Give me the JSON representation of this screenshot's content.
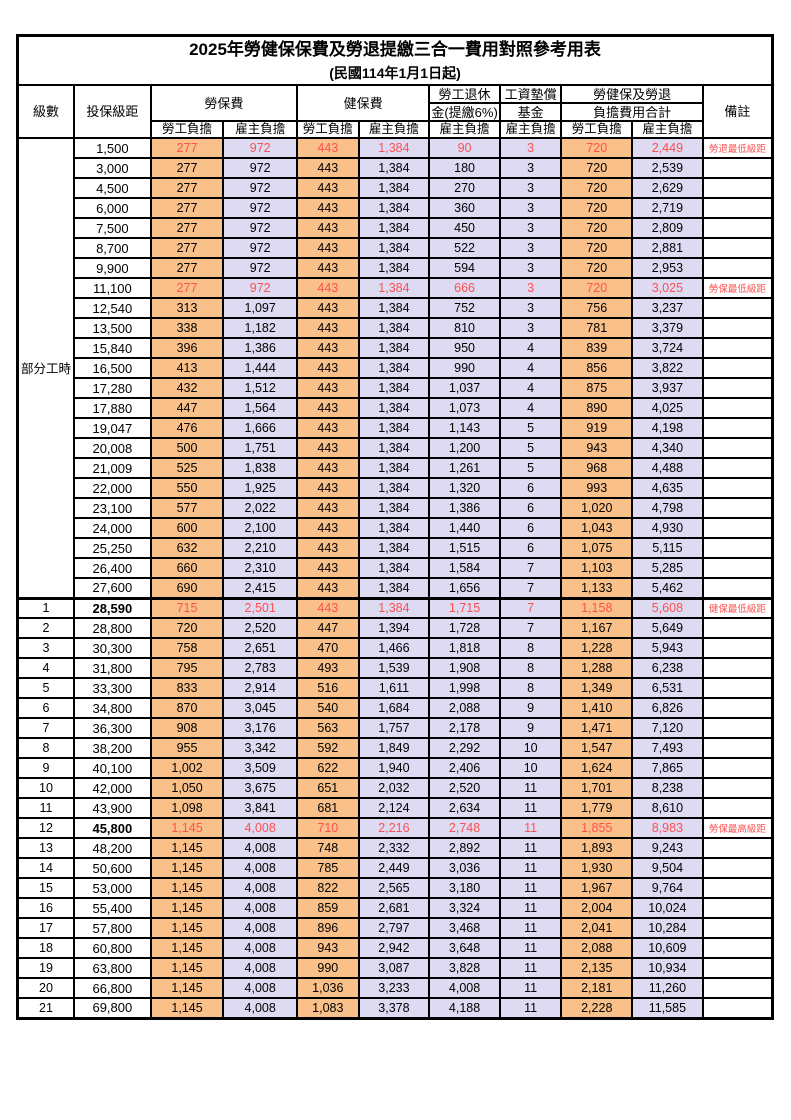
{
  "title": "2025年勞健保保費及勞退提繳三合一費用對照參考用表",
  "subtitle": "(民國114年1月1日起)",
  "colors": {
    "employee_bg": "#F9C189",
    "employer_bg": "#DEDAF2",
    "highlight_text": "#FF5050",
    "remark_text": "#FF4040",
    "border": "#000000"
  },
  "header": {
    "level": "級數",
    "bracket": "投保級距",
    "labor": "勞保費",
    "health": "健保費",
    "pension_line1": "勞工退休",
    "pension_line2": "金(提繳6%)",
    "fund_line1": "工資墊償",
    "fund_line2": "基金",
    "total_line1": "勞健保及勞退",
    "total_line2": "負擔費用合計",
    "remark": "備註",
    "employee": "勞工負擔",
    "employer": "雇主負擔"
  },
  "table": {
    "part_time_label": "部分工時",
    "part_time_rowspan": 23,
    "rows": [
      {
        "level": null,
        "bracket": "1,500",
        "cells": [
          "277",
          "972",
          "443",
          "1,384",
          "90",
          "3",
          "720",
          "2,449"
        ],
        "remark": "勞退最低級距",
        "highlight": true
      },
      {
        "level": null,
        "bracket": "3,000",
        "cells": [
          "277",
          "972",
          "443",
          "1,384",
          "180",
          "3",
          "720",
          "2,539"
        ],
        "remark": ""
      },
      {
        "level": null,
        "bracket": "4,500",
        "cells": [
          "277",
          "972",
          "443",
          "1,384",
          "270",
          "3",
          "720",
          "2,629"
        ],
        "remark": ""
      },
      {
        "level": null,
        "bracket": "6,000",
        "cells": [
          "277",
          "972",
          "443",
          "1,384",
          "360",
          "3",
          "720",
          "2,719"
        ],
        "remark": ""
      },
      {
        "level": null,
        "bracket": "7,500",
        "cells": [
          "277",
          "972",
          "443",
          "1,384",
          "450",
          "3",
          "720",
          "2,809"
        ],
        "remark": ""
      },
      {
        "level": null,
        "bracket": "8,700",
        "cells": [
          "277",
          "972",
          "443",
          "1,384",
          "522",
          "3",
          "720",
          "2,881"
        ],
        "remark": ""
      },
      {
        "level": null,
        "bracket": "9,900",
        "cells": [
          "277",
          "972",
          "443",
          "1,384",
          "594",
          "3",
          "720",
          "2,953"
        ],
        "remark": ""
      },
      {
        "level": null,
        "bracket": "11,100",
        "cells": [
          "277",
          "972",
          "443",
          "1,384",
          "666",
          "3",
          "720",
          "3,025"
        ],
        "remark": "勞保最低級距",
        "highlight": true
      },
      {
        "level": null,
        "bracket": "12,540",
        "cells": [
          "313",
          "1,097",
          "443",
          "1,384",
          "752",
          "3",
          "756",
          "3,237"
        ],
        "remark": ""
      },
      {
        "level": null,
        "bracket": "13,500",
        "cells": [
          "338",
          "1,182",
          "443",
          "1,384",
          "810",
          "3",
          "781",
          "3,379"
        ],
        "remark": ""
      },
      {
        "level": null,
        "bracket": "15,840",
        "cells": [
          "396",
          "1,386",
          "443",
          "1,384",
          "950",
          "4",
          "839",
          "3,724"
        ],
        "remark": ""
      },
      {
        "level": null,
        "bracket": "16,500",
        "cells": [
          "413",
          "1,444",
          "443",
          "1,384",
          "990",
          "4",
          "856",
          "3,822"
        ],
        "remark": ""
      },
      {
        "level": null,
        "bracket": "17,280",
        "cells": [
          "432",
          "1,512",
          "443",
          "1,384",
          "1,037",
          "4",
          "875",
          "3,937"
        ],
        "remark": ""
      },
      {
        "level": null,
        "bracket": "17,880",
        "cells": [
          "447",
          "1,564",
          "443",
          "1,384",
          "1,073",
          "4",
          "890",
          "4,025"
        ],
        "remark": ""
      },
      {
        "level": null,
        "bracket": "19,047",
        "cells": [
          "476",
          "1,666",
          "443",
          "1,384",
          "1,143",
          "5",
          "919",
          "4,198"
        ],
        "remark": ""
      },
      {
        "level": null,
        "bracket": "20,008",
        "cells": [
          "500",
          "1,751",
          "443",
          "1,384",
          "1,200",
          "5",
          "943",
          "4,340"
        ],
        "remark": ""
      },
      {
        "level": null,
        "bracket": "21,009",
        "cells": [
          "525",
          "1,838",
          "443",
          "1,384",
          "1,261",
          "5",
          "968",
          "4,488"
        ],
        "remark": ""
      },
      {
        "level": null,
        "bracket": "22,000",
        "cells": [
          "550",
          "1,925",
          "443",
          "1,384",
          "1,320",
          "6",
          "993",
          "4,635"
        ],
        "remark": ""
      },
      {
        "level": null,
        "bracket": "23,100",
        "cells": [
          "577",
          "2,022",
          "443",
          "1,384",
          "1,386",
          "6",
          "1,020",
          "4,798"
        ],
        "remark": ""
      },
      {
        "level": null,
        "bracket": "24,000",
        "cells": [
          "600",
          "2,100",
          "443",
          "1,384",
          "1,440",
          "6",
          "1,043",
          "4,930"
        ],
        "remark": ""
      },
      {
        "level": null,
        "bracket": "25,250",
        "cells": [
          "632",
          "2,210",
          "443",
          "1,384",
          "1,515",
          "6",
          "1,075",
          "5,115"
        ],
        "remark": ""
      },
      {
        "level": null,
        "bracket": "26,400",
        "cells": [
          "660",
          "2,310",
          "443",
          "1,384",
          "1,584",
          "7",
          "1,103",
          "5,285"
        ],
        "remark": ""
      },
      {
        "level": null,
        "bracket": "27,600",
        "cells": [
          "690",
          "2,415",
          "443",
          "1,384",
          "1,656",
          "7",
          "1,133",
          "5,462"
        ],
        "remark": ""
      },
      {
        "level": "1",
        "bracket": "28,590",
        "cells": [
          "715",
          "2,501",
          "443",
          "1,384",
          "1,715",
          "7",
          "1,158",
          "5,608"
        ],
        "remark": "健保最低級距",
        "highlight": true,
        "bold_bracket": true,
        "section_start": true
      },
      {
        "level": "2",
        "bracket": "28,800",
        "cells": [
          "720",
          "2,520",
          "447",
          "1,394",
          "1,728",
          "7",
          "1,167",
          "5,649"
        ],
        "remark": ""
      },
      {
        "level": "3",
        "bracket": "30,300",
        "cells": [
          "758",
          "2,651",
          "470",
          "1,466",
          "1,818",
          "8",
          "1,228",
          "5,943"
        ],
        "remark": ""
      },
      {
        "level": "4",
        "bracket": "31,800",
        "cells": [
          "795",
          "2,783",
          "493",
          "1,539",
          "1,908",
          "8",
          "1,288",
          "6,238"
        ],
        "remark": ""
      },
      {
        "level": "5",
        "bracket": "33,300",
        "cells": [
          "833",
          "2,914",
          "516",
          "1,611",
          "1,998",
          "8",
          "1,349",
          "6,531"
        ],
        "remark": ""
      },
      {
        "level": "6",
        "bracket": "34,800",
        "cells": [
          "870",
          "3,045",
          "540",
          "1,684",
          "2,088",
          "9",
          "1,410",
          "6,826"
        ],
        "remark": ""
      },
      {
        "level": "7",
        "bracket": "36,300",
        "cells": [
          "908",
          "3,176",
          "563",
          "1,757",
          "2,178",
          "9",
          "1,471",
          "7,120"
        ],
        "remark": ""
      },
      {
        "level": "8",
        "bracket": "38,200",
        "cells": [
          "955",
          "3,342",
          "592",
          "1,849",
          "2,292",
          "10",
          "1,547",
          "7,493"
        ],
        "remark": ""
      },
      {
        "level": "9",
        "bracket": "40,100",
        "cells": [
          "1,002",
          "3,509",
          "622",
          "1,940",
          "2,406",
          "10",
          "1,624",
          "7,865"
        ],
        "remark": ""
      },
      {
        "level": "10",
        "bracket": "42,000",
        "cells": [
          "1,050",
          "3,675",
          "651",
          "2,032",
          "2,520",
          "11",
          "1,701",
          "8,238"
        ],
        "remark": ""
      },
      {
        "level": "11",
        "bracket": "43,900",
        "cells": [
          "1,098",
          "3,841",
          "681",
          "2,124",
          "2,634",
          "11",
          "1,779",
          "8,610"
        ],
        "remark": ""
      },
      {
        "level": "12",
        "bracket": "45,800",
        "cells": [
          "1,145",
          "4,008",
          "710",
          "2,216",
          "2,748",
          "11",
          "1,855",
          "8,983"
        ],
        "remark": "勞保最高級距",
        "highlight": true,
        "bold_bracket": true
      },
      {
        "level": "13",
        "bracket": "48,200",
        "cells": [
          "1,145",
          "4,008",
          "748",
          "2,332",
          "2,892",
          "11",
          "1,893",
          "9,243"
        ],
        "remark": ""
      },
      {
        "level": "14",
        "bracket": "50,600",
        "cells": [
          "1,145",
          "4,008",
          "785",
          "2,449",
          "3,036",
          "11",
          "1,930",
          "9,504"
        ],
        "remark": ""
      },
      {
        "level": "15",
        "bracket": "53,000",
        "cells": [
          "1,145",
          "4,008",
          "822",
          "2,565",
          "3,180",
          "11",
          "1,967",
          "9,764"
        ],
        "remark": ""
      },
      {
        "level": "16",
        "bracket": "55,400",
        "cells": [
          "1,145",
          "4,008",
          "859",
          "2,681",
          "3,324",
          "11",
          "2,004",
          "10,024"
        ],
        "remark": ""
      },
      {
        "level": "17",
        "bracket": "57,800",
        "cells": [
          "1,145",
          "4,008",
          "896",
          "2,797",
          "3,468",
          "11",
          "2,041",
          "10,284"
        ],
        "remark": ""
      },
      {
        "level": "18",
        "bracket": "60,800",
        "cells": [
          "1,145",
          "4,008",
          "943",
          "2,942",
          "3,648",
          "11",
          "2,088",
          "10,609"
        ],
        "remark": ""
      },
      {
        "level": "19",
        "bracket": "63,800",
        "cells": [
          "1,145",
          "4,008",
          "990",
          "3,087",
          "3,828",
          "11",
          "2,135",
          "10,934"
        ],
        "remark": ""
      },
      {
        "level": "20",
        "bracket": "66,800",
        "cells": [
          "1,145",
          "4,008",
          "1,036",
          "3,233",
          "4,008",
          "11",
          "2,181",
          "11,260"
        ],
        "remark": ""
      },
      {
        "level": "21",
        "bracket": "69,800",
        "cells": [
          "1,145",
          "4,008",
          "1,083",
          "3,378",
          "4,188",
          "11",
          "2,228",
          "11,585"
        ],
        "remark": ""
      }
    ]
  }
}
